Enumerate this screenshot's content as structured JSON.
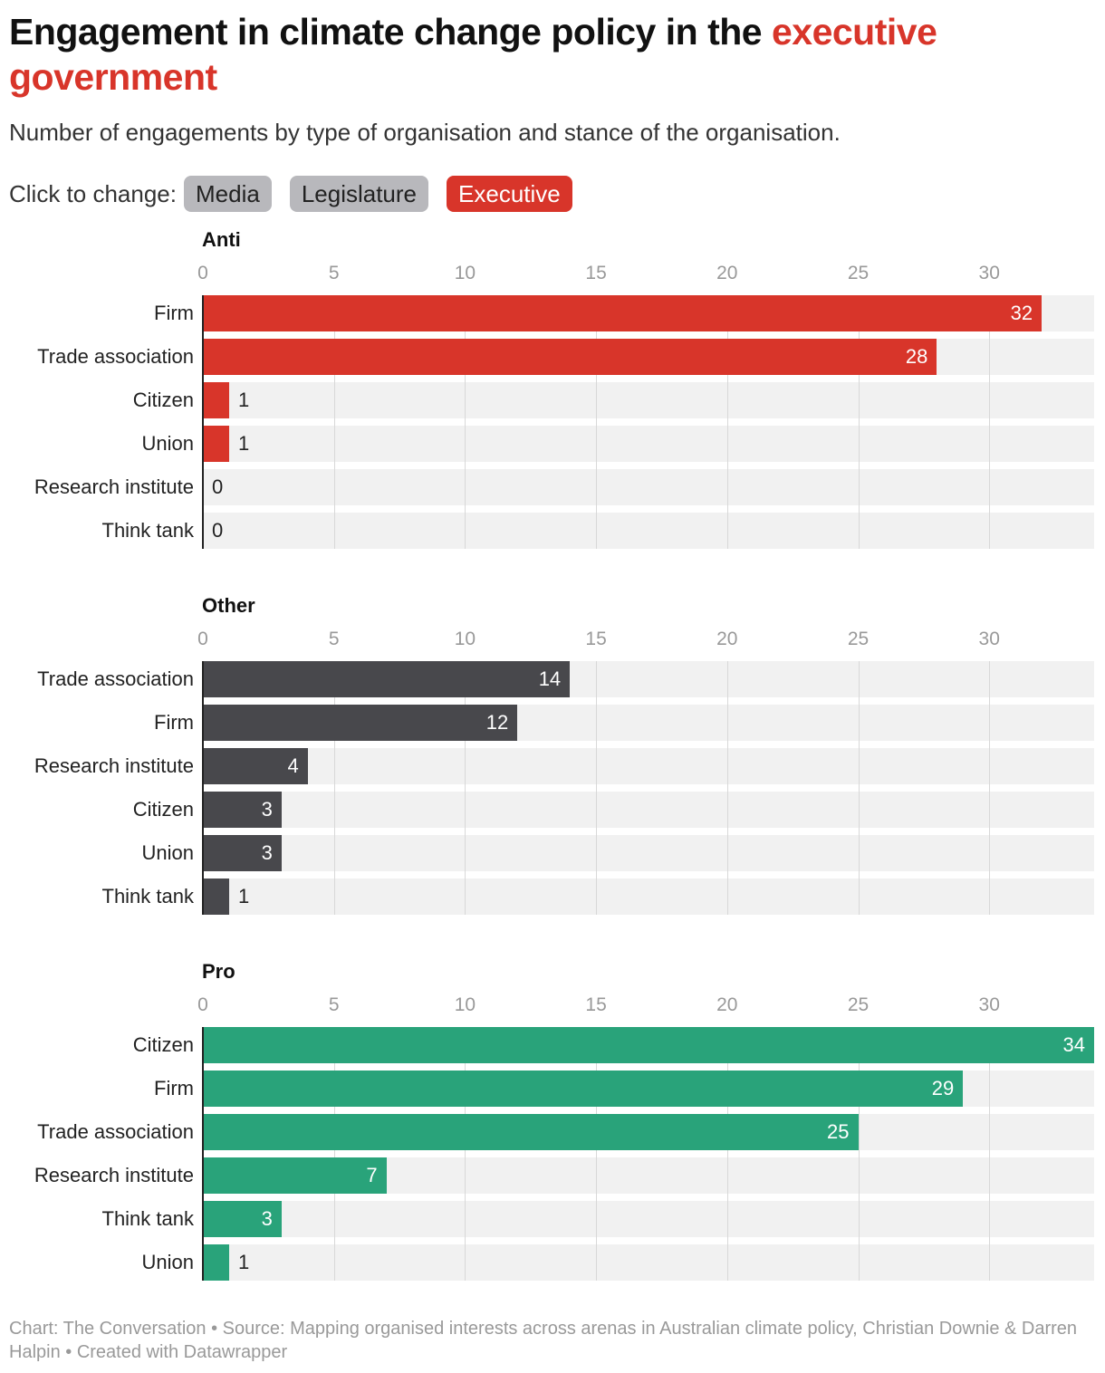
{
  "title": {
    "main": "Engagement in climate change policy in the ",
    "highlight": "executive government"
  },
  "subtitle": "Number of engagements by type of organisation and stance of the organisation.",
  "controls": {
    "label": "Click to change:",
    "buttons": [
      {
        "label": "Media",
        "active": false
      },
      {
        "label": "Legislature",
        "active": false
      },
      {
        "label": "Executive",
        "active": true
      }
    ]
  },
  "colors": {
    "anti": "#d8352a",
    "other": "#48484c",
    "pro": "#29a37a",
    "active_button": "#d8352a",
    "inactive_button": "#b8b8bc"
  },
  "chart_data": [
    {
      "type": "bar",
      "orientation": "horizontal",
      "title": "Anti",
      "color_key": "anti",
      "xlim": [
        0,
        34
      ],
      "ticks": [
        0,
        5,
        10,
        15,
        20,
        25,
        30
      ],
      "categories": [
        "Firm",
        "Trade association",
        "Citizen",
        "Union",
        "Research institute",
        "Think tank"
      ],
      "values": [
        32,
        28,
        1,
        1,
        0,
        0
      ]
    },
    {
      "type": "bar",
      "orientation": "horizontal",
      "title": "Other",
      "color_key": "other",
      "xlim": [
        0,
        34
      ],
      "ticks": [
        0,
        5,
        10,
        15,
        20,
        25,
        30
      ],
      "categories": [
        "Trade association",
        "Firm",
        "Research institute",
        "Citizen",
        "Union",
        "Think tank"
      ],
      "values": [
        14,
        12,
        4,
        3,
        3,
        1
      ]
    },
    {
      "type": "bar",
      "orientation": "horizontal",
      "title": "Pro",
      "color_key": "pro",
      "xlim": [
        0,
        34
      ],
      "ticks": [
        0,
        5,
        10,
        15,
        20,
        25,
        30
      ],
      "categories": [
        "Citizen",
        "Firm",
        "Trade association",
        "Research institute",
        "Think tank",
        "Union"
      ],
      "values": [
        34,
        29,
        25,
        7,
        3,
        1
      ]
    }
  ],
  "footer": "Chart: The Conversation • Source: Mapping organised interests across arenas in Australian climate policy, Christian Downie & Darren Halpin • Created with Datawrapper"
}
